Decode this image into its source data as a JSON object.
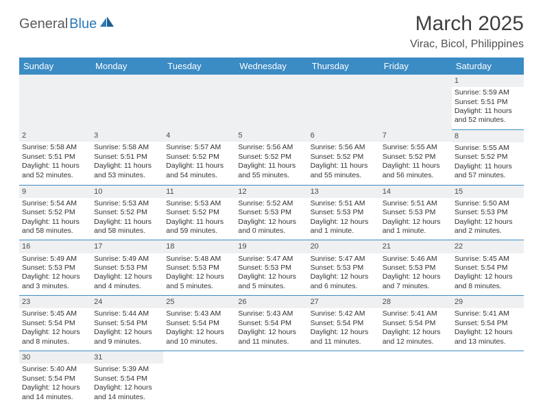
{
  "logo": {
    "part1": "General",
    "part2": "Blue"
  },
  "title": "March 2025",
  "location": "Virac, Bicol, Philippines",
  "colors": {
    "header_bg": "#3b8bc4",
    "header_text": "#ffffff",
    "daynum_bg": "#eef0f1",
    "body_text": "#323232",
    "rule": "#3b8bc4",
    "logo_gray": "#5a5a5a",
    "logo_blue": "#2a7ab8"
  },
  "weekdays": [
    "Sunday",
    "Monday",
    "Tuesday",
    "Wednesday",
    "Thursday",
    "Friday",
    "Saturday"
  ],
  "weeks": [
    [
      null,
      null,
      null,
      null,
      null,
      null,
      {
        "n": "1",
        "sr": "Sunrise: 5:59 AM",
        "ss": "Sunset: 5:51 PM",
        "dl": "Daylight: 11 hours and 52 minutes."
      }
    ],
    [
      {
        "n": "2",
        "sr": "Sunrise: 5:58 AM",
        "ss": "Sunset: 5:51 PM",
        "dl": "Daylight: 11 hours and 52 minutes."
      },
      {
        "n": "3",
        "sr": "Sunrise: 5:58 AM",
        "ss": "Sunset: 5:51 PM",
        "dl": "Daylight: 11 hours and 53 minutes."
      },
      {
        "n": "4",
        "sr": "Sunrise: 5:57 AM",
        "ss": "Sunset: 5:52 PM",
        "dl": "Daylight: 11 hours and 54 minutes."
      },
      {
        "n": "5",
        "sr": "Sunrise: 5:56 AM",
        "ss": "Sunset: 5:52 PM",
        "dl": "Daylight: 11 hours and 55 minutes."
      },
      {
        "n": "6",
        "sr": "Sunrise: 5:56 AM",
        "ss": "Sunset: 5:52 PM",
        "dl": "Daylight: 11 hours and 55 minutes."
      },
      {
        "n": "7",
        "sr": "Sunrise: 5:55 AM",
        "ss": "Sunset: 5:52 PM",
        "dl": "Daylight: 11 hours and 56 minutes."
      },
      {
        "n": "8",
        "sr": "Sunrise: 5:55 AM",
        "ss": "Sunset: 5:52 PM",
        "dl": "Daylight: 11 hours and 57 minutes."
      }
    ],
    [
      {
        "n": "9",
        "sr": "Sunrise: 5:54 AM",
        "ss": "Sunset: 5:52 PM",
        "dl": "Daylight: 11 hours and 58 minutes."
      },
      {
        "n": "10",
        "sr": "Sunrise: 5:53 AM",
        "ss": "Sunset: 5:52 PM",
        "dl": "Daylight: 11 hours and 58 minutes."
      },
      {
        "n": "11",
        "sr": "Sunrise: 5:53 AM",
        "ss": "Sunset: 5:52 PM",
        "dl": "Daylight: 11 hours and 59 minutes."
      },
      {
        "n": "12",
        "sr": "Sunrise: 5:52 AM",
        "ss": "Sunset: 5:53 PM",
        "dl": "Daylight: 12 hours and 0 minutes."
      },
      {
        "n": "13",
        "sr": "Sunrise: 5:51 AM",
        "ss": "Sunset: 5:53 PM",
        "dl": "Daylight: 12 hours and 1 minute."
      },
      {
        "n": "14",
        "sr": "Sunrise: 5:51 AM",
        "ss": "Sunset: 5:53 PM",
        "dl": "Daylight: 12 hours and 1 minute."
      },
      {
        "n": "15",
        "sr": "Sunrise: 5:50 AM",
        "ss": "Sunset: 5:53 PM",
        "dl": "Daylight: 12 hours and 2 minutes."
      }
    ],
    [
      {
        "n": "16",
        "sr": "Sunrise: 5:49 AM",
        "ss": "Sunset: 5:53 PM",
        "dl": "Daylight: 12 hours and 3 minutes."
      },
      {
        "n": "17",
        "sr": "Sunrise: 5:49 AM",
        "ss": "Sunset: 5:53 PM",
        "dl": "Daylight: 12 hours and 4 minutes."
      },
      {
        "n": "18",
        "sr": "Sunrise: 5:48 AM",
        "ss": "Sunset: 5:53 PM",
        "dl": "Daylight: 12 hours and 5 minutes."
      },
      {
        "n": "19",
        "sr": "Sunrise: 5:47 AM",
        "ss": "Sunset: 5:53 PM",
        "dl": "Daylight: 12 hours and 5 minutes."
      },
      {
        "n": "20",
        "sr": "Sunrise: 5:47 AM",
        "ss": "Sunset: 5:53 PM",
        "dl": "Daylight: 12 hours and 6 minutes."
      },
      {
        "n": "21",
        "sr": "Sunrise: 5:46 AM",
        "ss": "Sunset: 5:53 PM",
        "dl": "Daylight: 12 hours and 7 minutes."
      },
      {
        "n": "22",
        "sr": "Sunrise: 5:45 AM",
        "ss": "Sunset: 5:54 PM",
        "dl": "Daylight: 12 hours and 8 minutes."
      }
    ],
    [
      {
        "n": "23",
        "sr": "Sunrise: 5:45 AM",
        "ss": "Sunset: 5:54 PM",
        "dl": "Daylight: 12 hours and 8 minutes."
      },
      {
        "n": "24",
        "sr": "Sunrise: 5:44 AM",
        "ss": "Sunset: 5:54 PM",
        "dl": "Daylight: 12 hours and 9 minutes."
      },
      {
        "n": "25",
        "sr": "Sunrise: 5:43 AM",
        "ss": "Sunset: 5:54 PM",
        "dl": "Daylight: 12 hours and 10 minutes."
      },
      {
        "n": "26",
        "sr": "Sunrise: 5:43 AM",
        "ss": "Sunset: 5:54 PM",
        "dl": "Daylight: 12 hours and 11 minutes."
      },
      {
        "n": "27",
        "sr": "Sunrise: 5:42 AM",
        "ss": "Sunset: 5:54 PM",
        "dl": "Daylight: 12 hours and 11 minutes."
      },
      {
        "n": "28",
        "sr": "Sunrise: 5:41 AM",
        "ss": "Sunset: 5:54 PM",
        "dl": "Daylight: 12 hours and 12 minutes."
      },
      {
        "n": "29",
        "sr": "Sunrise: 5:41 AM",
        "ss": "Sunset: 5:54 PM",
        "dl": "Daylight: 12 hours and 13 minutes."
      }
    ],
    [
      {
        "n": "30",
        "sr": "Sunrise: 5:40 AM",
        "ss": "Sunset: 5:54 PM",
        "dl": "Daylight: 12 hours and 14 minutes."
      },
      {
        "n": "31",
        "sr": "Sunrise: 5:39 AM",
        "ss": "Sunset: 5:54 PM",
        "dl": "Daylight: 12 hours and 14 minutes."
      },
      null,
      null,
      null,
      null,
      null
    ]
  ]
}
